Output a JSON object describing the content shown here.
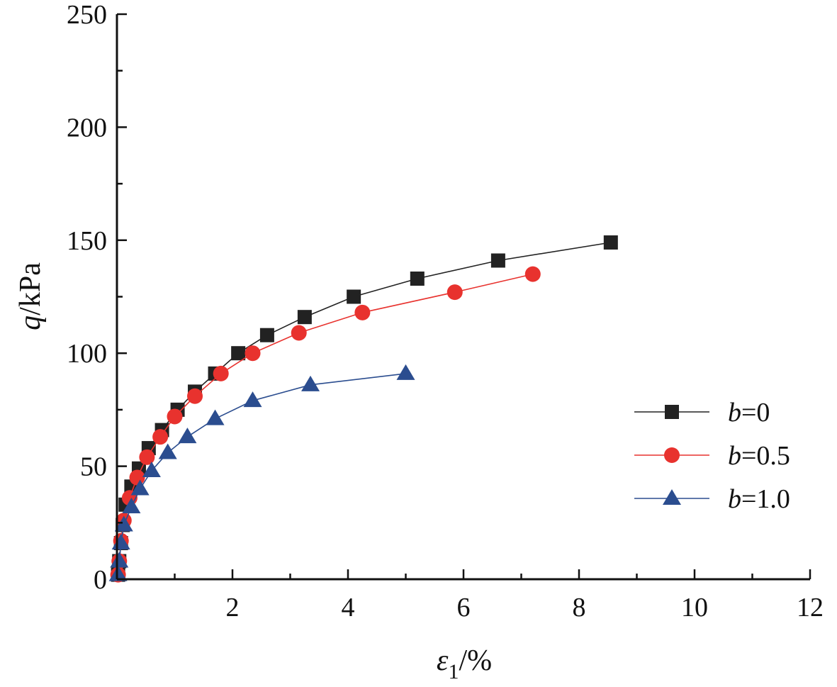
{
  "chart_data": {
    "type": "line",
    "xlabel": {
      "symbol": "ε",
      "subscript": "1",
      "unit": "/%"
    },
    "ylabel": {
      "symbol": "q",
      "unit": "/kPa"
    },
    "xlim": [
      0,
      12
    ],
    "ylim": [
      0,
      250
    ],
    "x_ticks": [
      "2",
      "4",
      "6",
      "8",
      "10",
      "12"
    ],
    "y_ticks": [
      "0",
      "50",
      "100",
      "150",
      "200",
      "250"
    ],
    "legend_position": "right",
    "series": [
      {
        "name": "b=0",
        "legend_var": "b",
        "legend_value": "=0",
        "color": "#222222",
        "marker": "square",
        "points": [
          [
            0.02,
            2
          ],
          [
            0.04,
            8
          ],
          [
            0.07,
            16
          ],
          [
            0.1,
            24
          ],
          [
            0.15,
            33
          ],
          [
            0.25,
            41
          ],
          [
            0.38,
            49
          ],
          [
            0.55,
            58
          ],
          [
            0.78,
            66
          ],
          [
            1.05,
            75
          ],
          [
            1.35,
            83
          ],
          [
            1.7,
            91
          ],
          [
            2.1,
            100
          ],
          [
            2.6,
            108
          ],
          [
            3.25,
            116
          ],
          [
            4.1,
            125
          ],
          [
            5.2,
            133
          ],
          [
            6.6,
            141
          ],
          [
            8.55,
            149
          ]
        ]
      },
      {
        "name": "b=0.5",
        "legend_var": "b",
        "legend_value": "=0.5",
        "color": "#e8322e",
        "marker": "circle",
        "points": [
          [
            0.02,
            2
          ],
          [
            0.04,
            8
          ],
          [
            0.07,
            17
          ],
          [
            0.12,
            26
          ],
          [
            0.22,
            36
          ],
          [
            0.35,
            45
          ],
          [
            0.52,
            54
          ],
          [
            0.75,
            63
          ],
          [
            1.0,
            72
          ],
          [
            1.35,
            81
          ],
          [
            1.8,
            91
          ],
          [
            2.35,
            100
          ],
          [
            3.15,
            109
          ],
          [
            4.25,
            118
          ],
          [
            5.85,
            127
          ],
          [
            7.2,
            135
          ]
        ]
      },
      {
        "name": "b=1.0",
        "legend_var": "b",
        "legend_value": "=1.0",
        "color": "#2b4d8f",
        "marker": "triangle",
        "points": [
          [
            0.02,
            2
          ],
          [
            0.04,
            8
          ],
          [
            0.07,
            16
          ],
          [
            0.12,
            24
          ],
          [
            0.25,
            32
          ],
          [
            0.4,
            40
          ],
          [
            0.6,
            48
          ],
          [
            0.88,
            56
          ],
          [
            1.22,
            63
          ],
          [
            1.7,
            71
          ],
          [
            2.35,
            79
          ],
          [
            3.35,
            86
          ],
          [
            5.0,
            91
          ]
        ]
      }
    ]
  }
}
